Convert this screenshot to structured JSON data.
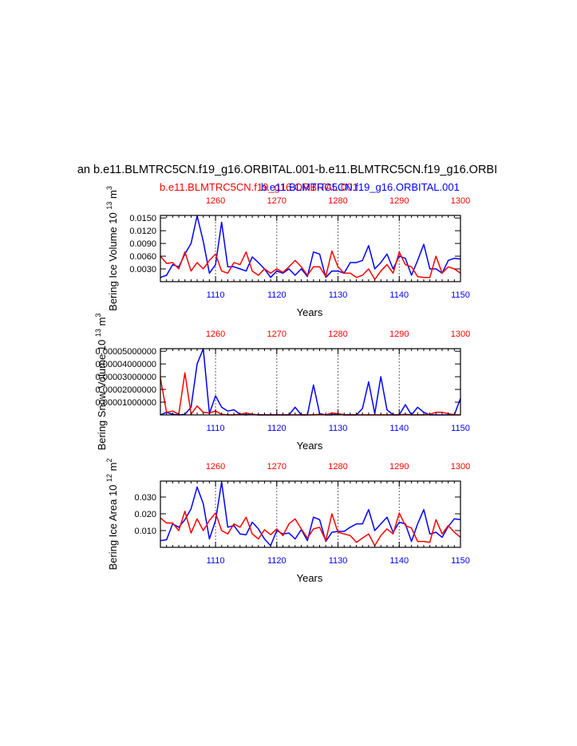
{
  "title": "an b.e11.BLMTRC5CN.f19_g16.ORBITAL.001-b.e11.BLMTRC5CN.f19_g16.ORBI",
  "legend": {
    "red_label": "b.e11.BLMTRC5CN.f19_g16.ORBITAL.001",
    "blue_label": "b.e11.BLMTRC5CN.f19_g16.ORBITAL.001",
    "red_color": "#ff0000",
    "blue_color": "#0000ff"
  },
  "chart_data": [
    {
      "type": "line",
      "ylabel": "Bering Ice Volume 10",
      "ylabel_exp": "13",
      "ylabel_unit": "m",
      "ylabel_unit_exp": "3",
      "xlabel": "Years",
      "xlim": [
        1101,
        1150
      ],
      "x2lim": [
        1251,
        1300
      ],
      "ylim": [
        0.0,
        0.0156
      ],
      "yticks": [
        0.003,
        0.006,
        0.009,
        0.012,
        0.015
      ],
      "ytick_labels": [
        "0.0030",
        "0.0060",
        "0.0090",
        "0.0120",
        "0.0150"
      ],
      "xticks": [
        1110,
        1120,
        1130,
        1140,
        1150
      ],
      "xtick_labels": [
        "1110",
        "1120",
        "1130",
        "1140",
        "1150"
      ],
      "x2ticks": [
        1260,
        1270,
        1280,
        1290,
        1300
      ],
      "x2tick_labels": [
        "1260",
        "1270",
        "1280",
        "1290",
        "1300"
      ],
      "series": [
        {
          "name": "blue",
          "color": "#0000ff",
          "x_start": 1101,
          "values": [
            0.001,
            0.0015,
            0.004,
            0.0035,
            0.0065,
            0.009,
            0.0155,
            0.0095,
            0.002,
            0.004,
            0.014,
            0.0035,
            0.0035,
            0.003,
            0.0025,
            0.0058,
            0.0045,
            0.003,
            0.001,
            0.0025,
            0.002,
            0.003,
            0.0015,
            0.003,
            0.0012,
            0.007,
            0.0065,
            0.001,
            0.0025,
            0.0025,
            0.002,
            0.0045,
            0.0045,
            0.005,
            0.0085,
            0.003,
            0.0045,
            0.0065,
            0.003,
            0.006,
            0.0055,
            0.0015,
            0.005,
            0.0088,
            0.003,
            0.003,
            0.002,
            0.005,
            0.0055,
            0.0053
          ]
        },
        {
          "name": "red",
          "color": "#ff0000",
          "x_start": 1101,
          "values": [
            0.006,
            0.0043,
            0.0045,
            0.003,
            0.007,
            0.0025,
            0.0045,
            0.003,
            0.005,
            0.0065,
            0.0025,
            0.002,
            0.0045,
            0.004,
            0.007,
            0.0025,
            0.0015,
            0.003,
            0.002,
            0.003,
            0.0022,
            0.0035,
            0.005,
            0.0035,
            0.0015,
            0.0035,
            0.0035,
            0.0012,
            0.0072,
            0.0035,
            0.002,
            0.002,
            0.001,
            0.0015,
            0.003,
            0.0005,
            0.0025,
            0.004,
            0.002,
            0.007,
            0.004,
            0.0035,
            0.0012,
            0.001,
            0.001,
            0.006,
            0.002,
            0.0035,
            0.003,
            0.002
          ]
        }
      ]
    },
    {
      "type": "line",
      "ylabel": "Bering Snow Volume 10",
      "ylabel_exp": "13",
      "ylabel_unit": "m",
      "ylabel_unit_exp": "3",
      "xlabel": "Years",
      "xlim": [
        1101,
        1150
      ],
      "x2lim": [
        1251,
        1300
      ],
      "ylim": [
        0.0,
        5.2e-05
      ],
      "yticks": [
        1e-05,
        2e-05,
        3e-05,
        4e-05,
        5e-05
      ],
      "ytick_labels": [
        "0.00001000000",
        "0.00002000000",
        "0.00003000000",
        "0.00004000000",
        "0.00005000000"
      ],
      "xticks": [
        1110,
        1120,
        1130,
        1140,
        1150
      ],
      "xtick_labels": [
        "1110",
        "1120",
        "1130",
        "1140",
        "1150"
      ],
      "x2ticks": [
        1260,
        1270,
        1280,
        1290,
        1300
      ],
      "x2tick_labels": [
        "1260",
        "1270",
        "1280",
        "1290",
        "1300"
      ],
      "series": [
        {
          "name": "blue",
          "color": "#0000ff",
          "x_start": 1101,
          "values": [
            0.0,
            2e-06,
            5e-07,
            0.0,
            5e-07,
            6e-06,
            4e-05,
            5.2e-05,
            1e-06,
            1.5e-05,
            6e-06,
            3e-06,
            4e-06,
            5e-07,
            0.0,
            5e-07,
            0.0,
            0.0,
            0.0,
            0.0,
            0.0,
            0.0,
            6e-06,
            0.0,
            0.0,
            2.35e-05,
            1e-06,
            0.0,
            0.0,
            1e-06,
            0.0,
            0.0,
            0.0,
            5e-06,
            2.6e-05,
            1e-06,
            3e-05,
            4e-06,
            0.0,
            0.0,
            8e-06,
            0.0,
            6e-06,
            2e-06,
            0.0,
            0.0,
            0.0,
            0.0,
            0.0,
            1.3e-05
          ]
        },
        {
          "name": "red",
          "color": "#ff0000",
          "x_start": 1101,
          "values": [
            2.9e-05,
            2e-06,
            3e-06,
            5e-07,
            3.3e-05,
            5e-07,
            7e-06,
            2e-06,
            1.5e-06,
            3e-06,
            5e-07,
            0.0,
            0.0,
            5e-07,
            1.5e-06,
            5e-07,
            0.0,
            0.0,
            0.0,
            0.0,
            0.0,
            0.0,
            0.0,
            0.0,
            0.0,
            0.0,
            5e-07,
            0.0,
            1.5e-06,
            1e-06,
            0.0,
            0.0,
            0.0,
            0.0,
            0.0,
            0.0,
            0.0,
            0.0,
            0.0,
            0.0,
            5e-07,
            0.0,
            0.0,
            0.0,
            5e-07,
            2e-06,
            2e-06,
            1e-06,
            0.0,
            0.0
          ]
        }
      ]
    },
    {
      "type": "line",
      "ylabel": "Bering Ice Area 10",
      "ylabel_exp": "12",
      "ylabel_unit": "m",
      "ylabel_unit_exp": "2",
      "xlabel": "Years",
      "xlim": [
        1101,
        1150
      ],
      "x2lim": [
        1251,
        1300
      ],
      "ylim": [
        0.0,
        0.0395
      ],
      "yticks": [
        0.01,
        0.02,
        0.03
      ],
      "ytick_labels": [
        "0.010",
        "0.020",
        "0.030"
      ],
      "xticks": [
        1110,
        1120,
        1130,
        1140,
        1150
      ],
      "xtick_labels": [
        "1110",
        "1120",
        "1130",
        "1140",
        "1150"
      ],
      "x2ticks": [
        1260,
        1270,
        1280,
        1290,
        1300
      ],
      "x2tick_labels": [
        "1260",
        "1270",
        "1280",
        "1290",
        "1300"
      ],
      "series": [
        {
          "name": "blue",
          "color": "#0000ff",
          "x_start": 1101,
          "values": [
            0.004,
            0.0045,
            0.014,
            0.012,
            0.0165,
            0.023,
            0.036,
            0.026,
            0.005,
            0.016,
            0.039,
            0.012,
            0.013,
            0.008,
            0.0075,
            0.015,
            0.011,
            0.005,
            0.001,
            0.01,
            0.008,
            0.0085,
            0.005,
            0.0105,
            0.004,
            0.018,
            0.0165,
            0.0035,
            0.009,
            0.0095,
            0.0095,
            0.012,
            0.014,
            0.014,
            0.0225,
            0.01,
            0.014,
            0.018,
            0.009,
            0.015,
            0.014,
            0.0035,
            0.014,
            0.0225,
            0.008,
            0.009,
            0.006,
            0.0125,
            0.017,
            0.0165
          ]
        },
        {
          "name": "red",
          "color": "#ff0000",
          "x_start": 1101,
          "values": [
            0.0175,
            0.0145,
            0.0145,
            0.01,
            0.0215,
            0.0085,
            0.017,
            0.01,
            0.016,
            0.0205,
            0.01,
            0.008,
            0.014,
            0.012,
            0.018,
            0.008,
            0.005,
            0.0105,
            0.0075,
            0.011,
            0.007,
            0.014,
            0.017,
            0.011,
            0.0055,
            0.011,
            0.012,
            0.004,
            0.02,
            0.009,
            0.008,
            0.007,
            0.003,
            0.0055,
            0.008,
            0.001,
            0.007,
            0.011,
            0.008,
            0.0205,
            0.013,
            0.0115,
            0.0035,
            0.0035,
            0.003,
            0.0165,
            0.008,
            0.013,
            0.009,
            0.006
          ]
        }
      ]
    }
  ]
}
